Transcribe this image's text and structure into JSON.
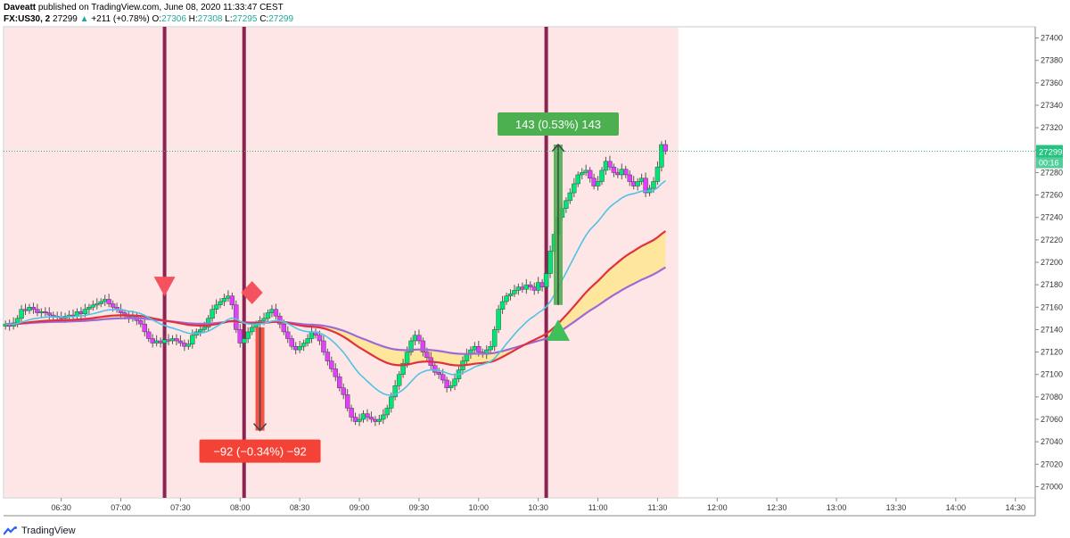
{
  "header": {
    "author": "Daveatt",
    "published": "published on TradingView.com, June 08, 2020 11:33:47 CEST",
    "symbol": "FX:US30, 2",
    "price": "27299",
    "change": "+211 (+0.78%)",
    "o_label": "O:",
    "o": "27306",
    "h_label": "H:",
    "h": "27308",
    "l_label": "L:",
    "l": "27295",
    "c_label": "C:",
    "c": "27299"
  },
  "footer": {
    "brand": "TradingView"
  },
  "colors": {
    "bull": "#00e676",
    "bear": "#e040fb",
    "vline": "#8b2252",
    "shade": "#ffe6e6",
    "cloud": "#ffe58f",
    "ema_red": "#e0303f",
    "ema_purple": "#9c6ad6",
    "ema_cyan": "#4fc3e6",
    "long": "#4caf50",
    "short": "#f44336"
  },
  "chart_data": {
    "type": "candlestick",
    "ylim": [
      26990,
      27410
    ],
    "y_ticks": [
      27000,
      27020,
      27040,
      27060,
      27080,
      27100,
      27120,
      27140,
      27160,
      27180,
      27200,
      27220,
      27240,
      27260,
      27280,
      27300,
      27320,
      27340,
      27360,
      27380,
      27400
    ],
    "x_ticks": [
      "06:30",
      "07:00",
      "07:30",
      "08:00",
      "08:30",
      "09:00",
      "09:30",
      "10:00",
      "10:30",
      "11:00",
      "11:30",
      "12:00",
      "12:30",
      "13:00",
      "13:30",
      "14:00",
      "14:30"
    ],
    "x_tick_minutes": [
      390,
      420,
      450,
      480,
      510,
      540,
      570,
      600,
      630,
      660,
      690,
      720,
      750,
      780,
      810,
      840,
      870
    ],
    "x_range_minutes": [
      361,
      880
    ],
    "last_price": "27299",
    "countdown": "00:16",
    "closes": [
      [
        362,
        27145
      ],
      [
        364,
        27143
      ],
      [
        366,
        27146
      ],
      [
        368,
        27150
      ],
      [
        370,
        27158
      ],
      [
        372,
        27157
      ],
      [
        374,
        27160
      ],
      [
        376,
        27158
      ],
      [
        378,
        27155
      ],
      [
        380,
        27156
      ],
      [
        382,
        27155
      ],
      [
        384,
        27153
      ],
      [
        386,
        27152
      ],
      [
        388,
        27151
      ],
      [
        390,
        27150
      ],
      [
        392,
        27152
      ],
      [
        394,
        27153
      ],
      [
        396,
        27152
      ],
      [
        398,
        27156
      ],
      [
        400,
        27154
      ],
      [
        402,
        27158
      ],
      [
        404,
        27160
      ],
      [
        406,
        27162
      ],
      [
        408,
        27163
      ],
      [
        410,
        27165
      ],
      [
        412,
        27167
      ],
      [
        414,
        27163
      ],
      [
        416,
        27160
      ],
      [
        418,
        27158
      ],
      [
        420,
        27155
      ],
      [
        422,
        27152
      ],
      [
        424,
        27150
      ],
      [
        426,
        27152
      ],
      [
        428,
        27148
      ],
      [
        430,
        27145
      ],
      [
        432,
        27138
      ],
      [
        434,
        27132
      ],
      [
        436,
        27128
      ],
      [
        438,
        27130
      ],
      [
        440,
        27128
      ],
      [
        442,
        27131
      ],
      [
        444,
        27130
      ],
      [
        446,
        27132
      ],
      [
        448,
        27130
      ],
      [
        450,
        27128
      ],
      [
        452,
        27125
      ],
      [
        454,
        27127
      ],
      [
        456,
        27135
      ],
      [
        458,
        27138
      ],
      [
        460,
        27140
      ],
      [
        462,
        27142
      ],
      [
        464,
        27150
      ],
      [
        466,
        27158
      ],
      [
        468,
        27162
      ],
      [
        470,
        27165
      ],
      [
        472,
        27168
      ],
      [
        474,
        27170
      ],
      [
        476,
        27162
      ],
      [
        478,
        27140
      ],
      [
        480,
        27128
      ],
      [
        482,
        27132
      ],
      [
        484,
        27138
      ],
      [
        486,
        27142
      ],
      [
        488,
        27145
      ],
      [
        490,
        27148
      ],
      [
        492,
        27150
      ],
      [
        494,
        27155
      ],
      [
        496,
        27158
      ],
      [
        498,
        27152
      ],
      [
        500,
        27145
      ],
      [
        502,
        27138
      ],
      [
        504,
        27132
      ],
      [
        506,
        27125
      ],
      [
        508,
        27122
      ],
      [
        510,
        27125
      ],
      [
        512,
        27128
      ],
      [
        514,
        27132
      ],
      [
        516,
        27138
      ],
      [
        518,
        27135
      ],
      [
        520,
        27130
      ],
      [
        522,
        27120
      ],
      [
        524,
        27112
      ],
      [
        526,
        27105
      ],
      [
        528,
        27098
      ],
      [
        530,
        27088
      ],
      [
        532,
        27082
      ],
      [
        534,
        27070
      ],
      [
        536,
        27062
      ],
      [
        538,
        27058
      ],
      [
        540,
        27060
      ],
      [
        542,
        27065
      ],
      [
        544,
        27062
      ],
      [
        546,
        27060
      ],
      [
        548,
        27058
      ],
      [
        550,
        27060
      ],
      [
        552,
        27064
      ],
      [
        554,
        27070
      ],
      [
        556,
        27080
      ],
      [
        558,
        27090
      ],
      [
        560,
        27100
      ],
      [
        562,
        27110
      ],
      [
        564,
        27120
      ],
      [
        566,
        27130
      ],
      [
        568,
        27135
      ],
      [
        570,
        27130
      ],
      [
        572,
        27120
      ],
      [
        574,
        27115
      ],
      [
        576,
        27108
      ],
      [
        578,
        27102
      ],
      [
        580,
        27100
      ],
      [
        582,
        27095
      ],
      [
        584,
        27088
      ],
      [
        586,
        27090
      ],
      [
        588,
        27096
      ],
      [
        590,
        27104
      ],
      [
        592,
        27112
      ],
      [
        594,
        27118
      ],
      [
        596,
        27122
      ],
      [
        598,
        27125
      ],
      [
        600,
        27120
      ],
      [
        602,
        27118
      ],
      [
        604,
        27122
      ],
      [
        606,
        27125
      ],
      [
        608,
        27140
      ],
      [
        610,
        27158
      ],
      [
        612,
        27165
      ],
      [
        614,
        27170
      ],
      [
        616,
        27172
      ],
      [
        618,
        27175
      ],
      [
        620,
        27178
      ],
      [
        622,
        27176
      ],
      [
        624,
        27180
      ],
      [
        626,
        27178
      ],
      [
        628,
        27175
      ],
      [
        630,
        27182
      ],
      [
        632,
        27178
      ],
      [
        634,
        27190
      ],
      [
        636,
        27210
      ],
      [
        638,
        27225
      ],
      [
        640,
        27240
      ],
      [
        642,
        27248
      ],
      [
        644,
        27255
      ],
      [
        646,
        27262
      ],
      [
        648,
        27270
      ],
      [
        650,
        27278
      ],
      [
        652,
        27280
      ],
      [
        654,
        27282
      ],
      [
        656,
        27275
      ],
      [
        658,
        27268
      ],
      [
        660,
        27272
      ],
      [
        662,
        27282
      ],
      [
        664,
        27290
      ],
      [
        666,
        27285
      ],
      [
        668,
        27280
      ],
      [
        670,
        27278
      ],
      [
        672,
        27283
      ],
      [
        674,
        27278
      ],
      [
        676,
        27272
      ],
      [
        678,
        27268
      ],
      [
        680,
        27272
      ],
      [
        682,
        27275
      ],
      [
        684,
        27262
      ],
      [
        686,
        27266
      ],
      [
        688,
        27272
      ],
      [
        690,
        27285
      ],
      [
        692,
        27305
      ],
      [
        694,
        27299
      ]
    ],
    "vertical_lines_minutes": [
      442,
      482,
      634
    ],
    "signals": [
      {
        "kind": "sell",
        "minute": 442,
        "price": 27176
      },
      {
        "kind": "exit",
        "minute": 486,
        "price": 27173
      },
      {
        "kind": "buy",
        "minute": 640,
        "price": 27138
      }
    ],
    "short_trade": {
      "from_minute": 490,
      "from_price": 27142,
      "to_price": 27050,
      "label": "−92 (−0.34%) −92"
    },
    "long_trade": {
      "from_minute": 640,
      "from_price": 27162,
      "to_price": 27305,
      "label": "143 (0.53%) 143"
    },
    "shaded_until_minute": 700
  }
}
